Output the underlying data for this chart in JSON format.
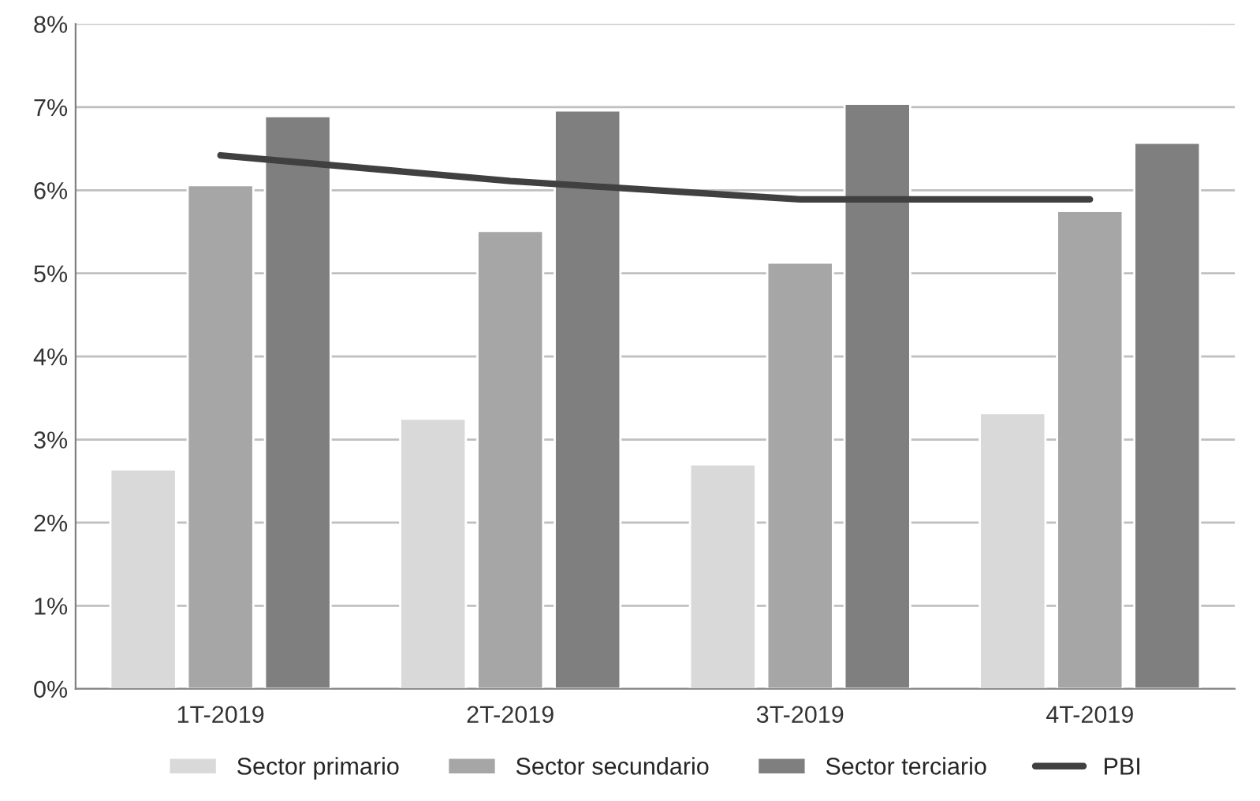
{
  "chart_data": {
    "type": "bar",
    "categories": [
      "1T-2019",
      "2T-2019",
      "3T-2019",
      "4T-2019"
    ],
    "series": [
      {
        "name": "Sector primario",
        "color": "#d9d9d9",
        "values": [
          2.64,
          3.25,
          2.7,
          3.32
        ]
      },
      {
        "name": "Sector secundario",
        "color": "#a6a6a6",
        "values": [
          6.06,
          5.51,
          5.13,
          5.75
        ]
      },
      {
        "name": "Sector terciario",
        "color": "#7f7f7f",
        "values": [
          6.89,
          6.96,
          7.04,
          6.57
        ]
      },
      {
        "name": "PBI",
        "type": "line",
        "color": "#404040",
        "values": [
          6.42,
          6.11,
          5.89,
          5.89
        ]
      }
    ],
    "ylim": [
      0,
      8
    ],
    "yticks": [
      {
        "value": 0,
        "label": "0%"
      },
      {
        "value": 1,
        "label": "1%"
      },
      {
        "value": 2,
        "label": "2%"
      },
      {
        "value": 3,
        "label": "3%"
      },
      {
        "value": 4,
        "label": "4%"
      },
      {
        "value": 5,
        "label": "5%"
      },
      {
        "value": 6,
        "label": "6%"
      },
      {
        "value": 7,
        "label": "7%"
      },
      {
        "value": 8,
        "label": "8%"
      }
    ],
    "grid": "y",
    "legend": "bottom",
    "marker": "none",
    "line_style": "solid"
  }
}
